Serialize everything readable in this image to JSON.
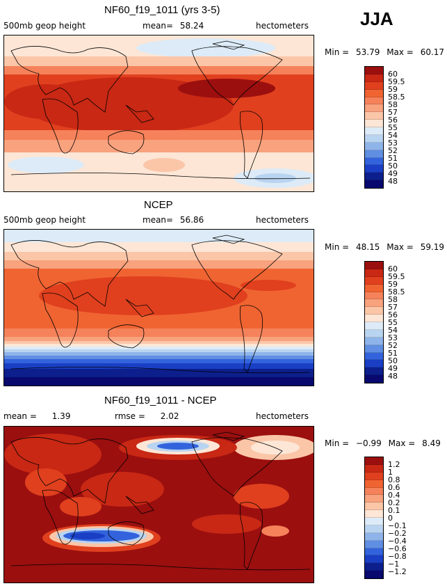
{
  "season": "JJA",
  "units": "hectometers",
  "panels": [
    {
      "title": "NF60_f19_1011 (yrs 3-5)",
      "left_label": "500mb  geop height",
      "stat_label": "mean=",
      "stat_value": "58.24",
      "units": "hectometers",
      "min_label": "Min =",
      "min_value": "53.79",
      "max_label": "Max =",
      "max_value": "60.17",
      "colorbar_labels": [
        "60",
        "59.5",
        "59",
        "58.5",
        "58",
        "57",
        "56",
        "55",
        "54",
        "53",
        "52",
        "51",
        "50",
        "49",
        "48"
      ],
      "colorbar_colors": [
        "#9b0f0f",
        "#c82814",
        "#e0401e",
        "#f06432",
        "#f5825a",
        "#f8a27e",
        "#fbc6a8",
        "#fde6d6",
        "#dcebf7",
        "#b9d4f0",
        "#8fb4ea",
        "#5f8ee3",
        "#3363dc",
        "#1a3fc4",
        "#0c1f8c",
        "#08086e"
      ]
    },
    {
      "title": "NCEP",
      "left_label": "500mb  geop height",
      "stat_label": "mean=",
      "stat_value": "56.86",
      "units": "hectometers",
      "min_label": "Min =",
      "min_value": "48.15",
      "max_label": "Max =",
      "max_value": "59.19",
      "colorbar_labels": [
        "60",
        "59.5",
        "59",
        "58.5",
        "58",
        "57",
        "56",
        "55",
        "54",
        "53",
        "52",
        "51",
        "50",
        "49",
        "48"
      ],
      "colorbar_colors": [
        "#9b0f0f",
        "#c82814",
        "#e0401e",
        "#f06432",
        "#f5825a",
        "#f8a27e",
        "#fbc6a8",
        "#fde6d6",
        "#dcebf7",
        "#b9d4f0",
        "#8fb4ea",
        "#5f8ee3",
        "#3363dc",
        "#1a3fc4",
        "#0c1f8c",
        "#08086e"
      ]
    },
    {
      "title": "NF60_f19_1011 - NCEP",
      "left_label": "mean =",
      "left_value": "1.39",
      "stat_label": "rmse =",
      "stat_value": "2.02",
      "units": "hectometers",
      "min_label": "Min =",
      "min_value": "−0.99",
      "max_label": "Max =",
      "max_value": "8.49",
      "colorbar_labels": [
        "1.2",
        "1",
        "0.8",
        "0.6",
        "0.4",
        "0.2",
        "0.1",
        "0",
        "−0.1",
        "−0.2",
        "−0.4",
        "−0.6",
        "−0.8",
        "−1",
        "−1.2"
      ],
      "colorbar_colors": [
        "#9b0f0f",
        "#c82814",
        "#e0401e",
        "#f06432",
        "#f5825a",
        "#f8a27e",
        "#fbc6a8",
        "#fde6d6",
        "#dcebf7",
        "#b9d4f0",
        "#8fb4ea",
        "#5f8ee3",
        "#3363dc",
        "#1a3fc4",
        "#0c1f8c",
        "#08086e"
      ]
    }
  ]
}
